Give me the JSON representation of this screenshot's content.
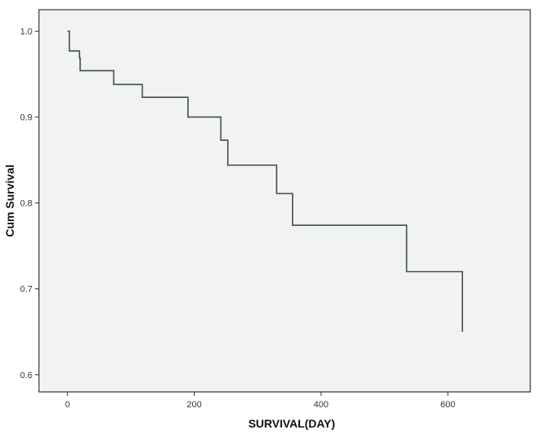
{
  "chart_data": {
    "type": "line",
    "subtype": "kaplan-meier-step",
    "title": "",
    "xlabel": "SURVIVAL(DAY)",
    "ylabel": "Cum Survival",
    "xlim": [
      -45,
      730
    ],
    "ylim": [
      0.58,
      1.025
    ],
    "x_ticks": [
      0,
      200,
      400,
      600
    ],
    "y_ticks": [
      0.6,
      0.7,
      0.8,
      0.9,
      1.0
    ],
    "y_tick_labels": [
      "0.6",
      "0.7",
      "0.8",
      "0.9",
      "1.0"
    ],
    "grid": false,
    "legend": "none",
    "colors": {
      "plot_background": "#f1f3f0",
      "line": "#444d49",
      "axis": "#333333"
    },
    "series": [
      {
        "step_points": [
          [
            0,
            1.0
          ],
          [
            3,
            0.977
          ],
          [
            19,
            0.969
          ],
          [
            20,
            0.954
          ],
          [
            73,
            0.938
          ],
          [
            118,
            0.923
          ],
          [
            190,
            0.9
          ],
          [
            242,
            0.873
          ],
          [
            253,
            0.844
          ],
          [
            330,
            0.811
          ],
          [
            355,
            0.774
          ],
          [
            535,
            0.72
          ],
          [
            623,
            0.65
          ]
        ]
      }
    ]
  }
}
